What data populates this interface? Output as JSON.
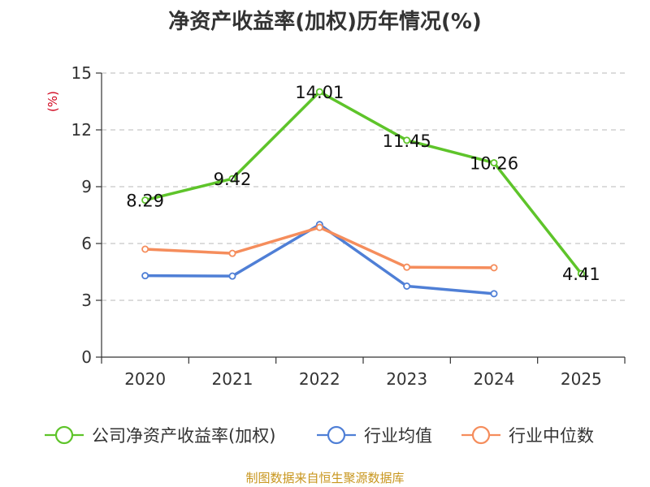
{
  "chart_data": {
    "type": "line",
    "title": "净资产收益率(加权)历年情况(%)",
    "ylabel": "(%)",
    "xlabel": "",
    "categories": [
      "2020",
      "2021",
      "2022",
      "2023",
      "2024",
      "2025"
    ],
    "ylim": [
      0,
      15
    ],
    "yticks": [
      0,
      3,
      6,
      9,
      12,
      15
    ],
    "grid": true,
    "legend_position": "bottom",
    "series": [
      {
        "name": "公司净资产收益率(加权)",
        "color": "#5ec42a",
        "values": [
          8.29,
          9.42,
          14.01,
          11.45,
          10.26,
          4.41
        ],
        "labels": [
          "8.29",
          "9.42",
          "14.01",
          "11.45",
          "10.26",
          "4.41"
        ]
      },
      {
        "name": "行业均值",
        "color": "#4f7fd6",
        "values": [
          4.3,
          4.28,
          7.0,
          3.75,
          3.35,
          null
        ]
      },
      {
        "name": "行业中位数",
        "color": "#f58d5c",
        "values": [
          5.7,
          5.48,
          6.85,
          4.75,
          4.72,
          null
        ]
      }
    ]
  },
  "source_note": "制图数据来自恒生聚源数据库"
}
